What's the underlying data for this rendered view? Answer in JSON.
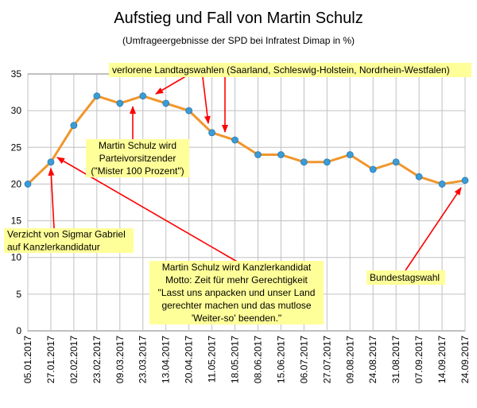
{
  "colors": {
    "line": "#f0962b",
    "marker": "#3c9bd5",
    "marker_stroke": "#2a7ab0",
    "annotation_bg": "#ffff99",
    "arrow": "#ff0000",
    "grid": "#c0c0c0"
  },
  "chart_data": {
    "type": "line",
    "title": "Aufstieg und Fall von Martin Schulz",
    "subtitle": "(Umfrageergebnisse der SPD bei Infratest Dimap in %)",
    "xlabel": "",
    "ylabel": "",
    "ylim": [
      0,
      35
    ],
    "yticks": [
      0,
      5,
      10,
      15,
      20,
      25,
      30,
      35
    ],
    "grid": true,
    "legend": "none",
    "x": [
      "05.01.2017",
      "27.01.2017",
      "02.02.2017",
      "23.02.2017",
      "09.03.2017",
      "23.03.2017",
      "13.04.2017",
      "20.04.2017",
      "11.05.2017",
      "18.05.2017",
      "08.06.2017",
      "15.06.2017",
      "06.07.2017",
      "27.07.2017",
      "09.08.2017",
      "24.08.2017",
      "31.08.2017",
      "07.09.2017",
      "14.09.2017",
      "24.09.2017"
    ],
    "values": [
      20,
      23,
      28,
      32,
      31,
      32,
      31,
      30,
      27,
      26,
      24,
      24,
      23,
      23,
      24,
      22,
      23,
      21,
      20,
      20.5
    ],
    "annotations": [
      {
        "id": "kandidatur-verzicht",
        "lines": [
          "Verzicht von Sigmar Gabriel",
          "auf Kanzlerkandidatur"
        ],
        "points_to": "27.01.2017"
      },
      {
        "id": "parteivorsitzender",
        "lines": [
          "Martin Schulz wird",
          "Parteivorsitzender",
          "(\"Mister 100 Prozent\")"
        ],
        "points_to": "23.03.2017"
      },
      {
        "id": "landtagswahlen",
        "lines": [
          "verlorene Landtagswahlen (Saarland, Schleswig-Holstein, Nordrhein-Westfalen)"
        ],
        "points_to": [
          "13.04.2017",
          "11.05.2017",
          "18.05.2017"
        ]
      },
      {
        "id": "kanzlerkandidat",
        "lines": [
          "Martin Schulz wird Kanzlerkandidat",
          "Motto: Zeit für mehr Gerechtigkeit",
          "\"Lasst uns anpacken und unser Land",
          "gerechter machen und das mutlose",
          "'Weiter-so' beenden.\""
        ],
        "points_to": "27.01.2017"
      },
      {
        "id": "bundestagswahl",
        "lines": [
          "Bundestagswahl"
        ],
        "points_to": "24.09.2017"
      }
    ]
  }
}
